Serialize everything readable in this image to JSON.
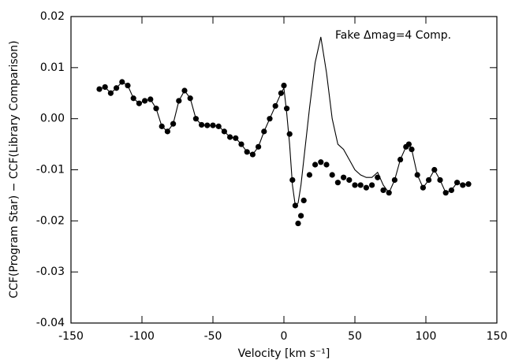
{
  "chart_data": {
    "type": "scatter",
    "annotation": "Fake Δmag=4 Comp.",
    "x_label": "Velocity [km s⁻¹]",
    "y_label": "CCF(Program Star) − CCF(Library Comparison)",
    "xlim": [
      -150,
      150
    ],
    "xticks": [
      -150,
      -100,
      -50,
      0,
      50,
      100,
      150
    ],
    "ylim": [
      -0.04,
      0.02
    ],
    "yticks": [
      -0.04,
      -0.03,
      -0.02,
      -0.01,
      {
        "value": 0,
        "label": "0.00"
      },
      0.01,
      0.02
    ],
    "x": [
      -130,
      -126,
      -122,
      -118,
      -114,
      -110,
      -106,
      -102,
      -98,
      -94,
      -90,
      -86,
      -82,
      -78,
      -74,
      -70,
      -66,
      -62,
      -58,
      -54,
      -50,
      -46,
      -42,
      -38,
      -34,
      -30,
      -26,
      -22,
      -18,
      -14,
      -10,
      -6,
      -2,
      0,
      2,
      4,
      6,
      8,
      10,
      12,
      14,
      18,
      22,
      26,
      30,
      34,
      38,
      42,
      46,
      50,
      54,
      58,
      62,
      66,
      70,
      74,
      78,
      82,
      86,
      88,
      90,
      94,
      98,
      102,
      106,
      110,
      114,
      118,
      122,
      126,
      130
    ],
    "series": [
      {
        "mode": "markers",
        "color": "#000000",
        "values": [
          0.0058,
          0.0062,
          0.005,
          0.006,
          0.0072,
          0.0065,
          0.004,
          0.003,
          0.0035,
          0.0038,
          0.002,
          -0.0015,
          -0.0025,
          -0.001,
          0.0035,
          0.0055,
          0.004,
          0,
          -0.0012,
          -0.0013,
          -0.0013,
          -0.0015,
          -0.0025,
          -0.0036,
          -0.0038,
          -0.005,
          -0.0065,
          -0.007,
          -0.0055,
          -0.0025,
          0,
          0.0025,
          0.005,
          0.0065,
          0.002,
          -0.003,
          -0.012,
          -0.017,
          -0.0205,
          -0.019,
          -0.016,
          -0.011,
          -0.009,
          -0.0085,
          -0.009,
          -0.011,
          -0.0125,
          -0.0115,
          -0.012,
          -0.013,
          -0.013,
          -0.0135,
          -0.013,
          -0.0115,
          -0.014,
          -0.0145,
          -0.012,
          -0.008,
          -0.0055,
          -0.005,
          -0.006,
          -0.011,
          -0.0135,
          -0.012,
          -0.01,
          -0.012,
          -0.0145,
          -0.014,
          -0.0125,
          -0.013,
          -0.0128
        ]
      },
      {
        "mode": "line",
        "color": "#000000",
        "values": [
          0.0058,
          0.0062,
          0.005,
          0.006,
          0.0072,
          0.0065,
          0.004,
          0.003,
          0.0035,
          0.0038,
          0.002,
          -0.0015,
          -0.0025,
          -0.001,
          0.0035,
          0.0055,
          0.004,
          0,
          -0.0012,
          -0.0013,
          -0.0013,
          -0.0015,
          -0.0025,
          -0.0036,
          -0.0038,
          -0.005,
          -0.0065,
          -0.007,
          -0.0055,
          -0.0025,
          0,
          0.0025,
          0.005,
          0.006,
          0.001,
          -0.005,
          -0.013,
          -0.017,
          -0.0165,
          -0.013,
          -0.008,
          0.002,
          0.011,
          0.016,
          0.009,
          0,
          -0.005,
          -0.006,
          -0.008,
          -0.01,
          -0.011,
          -0.0115,
          -0.0115,
          -0.0105,
          -0.013,
          -0.0145,
          -0.012,
          -0.008,
          -0.0055,
          -0.005,
          -0.006,
          -0.011,
          -0.0135,
          -0.012,
          -0.01,
          -0.012,
          -0.0145,
          -0.014,
          -0.0125,
          -0.013,
          -0.0128
        ]
      }
    ]
  }
}
